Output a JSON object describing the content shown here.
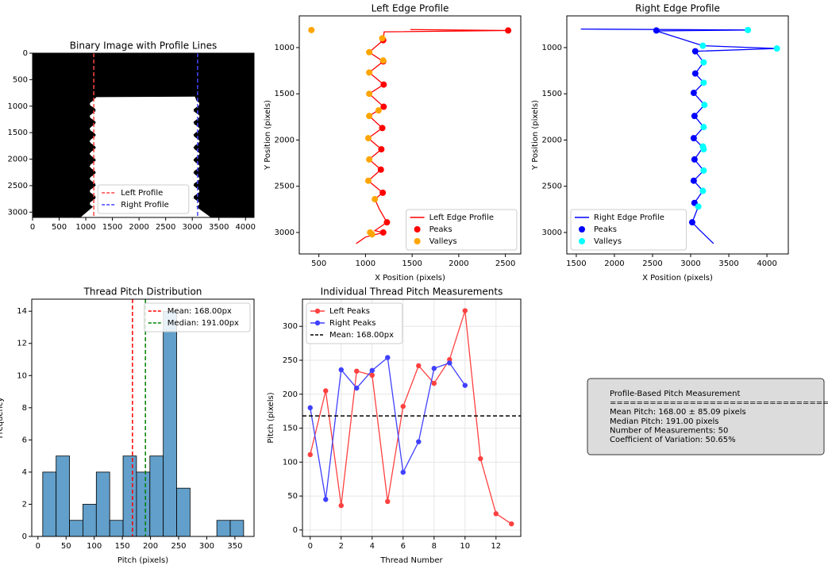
{
  "chart_data": [
    {
      "type": "image",
      "title": "Binary Image with Profile Lines",
      "xlim": [
        0,
        4160
      ],
      "ylim": [
        3100,
        0
      ],
      "xticks": [
        0,
        500,
        1000,
        1500,
        2000,
        2500,
        3000,
        3500,
        4000
      ],
      "yticks": [
        0,
        500,
        1000,
        1500,
        2000,
        2500,
        3000
      ],
      "legend": "lower center",
      "vlines": [
        {
          "label": "Left Profile",
          "x": 1150,
          "color": "#ff4444"
        },
        {
          "label": "Right Profile",
          "x": 3100,
          "color": "#4444ff"
        }
      ]
    },
    {
      "type": "line",
      "title": "Left Edge Profile",
      "xlabel": "X Position (pixels)",
      "ylabel": "Y Position (pixels)",
      "xlim": [
        290,
        2665
      ],
      "ylim": [
        3232,
        657
      ],
      "xticks": [
        500,
        1000,
        1500,
        2000,
        2500
      ],
      "yticks": [
        1000,
        1500,
        2000,
        2500,
        3000
      ],
      "legend": "lower right",
      "series": [
        {
          "name": "Left Edge Profile",
          "style": "line",
          "color": "#ff0000",
          "x": [
            1480,
            2530,
            1200,
            1190,
            1040,
            1190,
            1040,
            1195,
            1040,
            1195,
            1040,
            1180,
            1030,
            1170,
            1040,
            1165,
            1030,
            1185,
            1100,
            1150,
            1230,
            1100,
            1190,
            1000,
            900
          ],
          "values": [
            805,
            815,
            830,
            920,
            1050,
            1150,
            1270,
            1400,
            1500,
            1640,
            1740,
            1870,
            1980,
            2100,
            2210,
            2320,
            2440,
            2570,
            2640,
            2750,
            2890,
            2980,
            3000,
            3050,
            3120
          ]
        },
        {
          "name": "Peaks",
          "style": "points",
          "color": "#ff0000",
          "x": [
            2530,
            1190,
            1190,
            1195,
            1195,
            1180,
            1170,
            1165,
            1185,
            1230,
            1190
          ],
          "values": [
            815,
            920,
            1150,
            1400,
            1640,
            1870,
            2100,
            2320,
            2570,
            2890,
            3000
          ]
        },
        {
          "name": "Valleys",
          "style": "points",
          "color": "#ffa500",
          "x": [
            420,
            1180,
            1040,
            1190,
            1040,
            1040,
            1140,
            1040,
            1030,
            1040,
            1030,
            1100,
            1050,
            1070
          ],
          "values": [
            810,
            900,
            1050,
            1140,
            1270,
            1500,
            1680,
            1740,
            1980,
            2210,
            2440,
            2640,
            3000,
            3020
          ]
        }
      ]
    },
    {
      "type": "line",
      "title": "Right Edge Profile",
      "xlabel": "X Position (pixels)",
      "ylabel": "Y Position (pixels)",
      "xlim": [
        1376,
        4280
      ],
      "ylim": [
        3232,
        657
      ],
      "xticks": [
        1500,
        2000,
        2500,
        3000,
        3500,
        4000
      ],
      "yticks": [
        1000,
        1500,
        2000,
        2500,
        3000
      ],
      "legend": "lower left",
      "series": [
        {
          "name": "Right Edge Profile",
          "style": "line",
          "color": "#0000ff",
          "x": [
            1560,
            3750,
            2550,
            3160,
            4130,
            3060,
            3170,
            3060,
            3170,
            3040,
            3180,
            3050,
            3170,
            3040,
            3160,
            3050,
            3170,
            3040,
            3160,
            3050,
            3100,
            3020,
            3100,
            3300
          ],
          "values": [
            800,
            810,
            820,
            980,
            1010,
            1040,
            1160,
            1280,
            1380,
            1490,
            1620,
            1740,
            1860,
            1980,
            2080,
            2210,
            2330,
            2440,
            2550,
            2680,
            2720,
            2890,
            2960,
            3120
          ]
        },
        {
          "name": "Peaks",
          "style": "points",
          "color": "#0000ff",
          "x": [
            2550,
            3060,
            3060,
            3040,
            3050,
            3040,
            3050,
            3040,
            3050,
            3020
          ],
          "values": [
            815,
            1040,
            1280,
            1490,
            1740,
            1980,
            2210,
            2440,
            2680,
            2890
          ]
        },
        {
          "name": "Valleys",
          "style": "points",
          "color": "#00ffff",
          "x": [
            3750,
            3160,
            4130,
            3170,
            3170,
            3180,
            3170,
            3160,
            3170,
            3170,
            3160,
            3100
          ],
          "values": [
            810,
            980,
            1010,
            1160,
            1380,
            1620,
            1860,
            2070,
            2100,
            2330,
            2550,
            2720
          ]
        }
      ]
    },
    {
      "type": "histogram",
      "title": "Thread Pitch Distribution",
      "xlabel": "Pitch (pixels)",
      "ylabel": "Frequency",
      "xlim": [
        -11,
        384
      ],
      "ylim": [
        0,
        14.75
      ],
      "xticks": [
        0,
        50,
        100,
        150,
        200,
        250,
        300,
        350
      ],
      "yticks": [
        0,
        2,
        4,
        6,
        8,
        10,
        12,
        14
      ],
      "legend": "upper right",
      "color": "#629fca",
      "bins": [
        8.5,
        32.3,
        56.1,
        79.9,
        103.7,
        127.5,
        151.3,
        175.1,
        198.9,
        222.7,
        246.5,
        270.3,
        294.1,
        317.9,
        341.7,
        365.5
      ],
      "counts": [
        4,
        5,
        1,
        2,
        4,
        1,
        5,
        4,
        5,
        14,
        3,
        0,
        0,
        1,
        1
      ],
      "vlines": [
        {
          "label": "Mean: 168.00px",
          "x": 168,
          "color": "#ff0000"
        },
        {
          "label": "Median: 191.00px",
          "x": 191,
          "color": "#008000"
        }
      ]
    },
    {
      "type": "line",
      "title": "Individual Thread Pitch Measurements",
      "xlabel": "Thread Number",
      "ylabel": "Pitch (pixels)",
      "xlim": [
        -0.5,
        13.6
      ],
      "ylim": [
        -9.5,
        340
      ],
      "xticks": [
        0,
        2,
        4,
        6,
        8,
        10,
        12
      ],
      "yticks": [
        0,
        50,
        100,
        150,
        200,
        250,
        300
      ],
      "grid": true,
      "legend": "upper left",
      "series": [
        {
          "name": "Left Peaks",
          "style": "markers-line",
          "color": "#ff4040",
          "x": [
            0,
            1,
            2,
            3,
            4,
            5,
            6,
            7,
            8,
            9,
            10,
            11,
            12,
            13
          ],
          "values": [
            111,
            205,
            36,
            234,
            228,
            42,
            182,
            242,
            216,
            251,
            323,
            105,
            24,
            9
          ]
        },
        {
          "name": "Right Peaks",
          "style": "markers-line",
          "color": "#4040ff",
          "x": [
            0,
            1,
            2,
            3,
            4,
            5,
            6,
            7,
            8,
            9,
            10
          ],
          "values": [
            180,
            45,
            236,
            209,
            235,
            254,
            85,
            130,
            238,
            246,
            213
          ]
        }
      ],
      "hlines": [
        {
          "label": "Mean: 168.00px",
          "y": 168,
          "color": "#000000"
        }
      ]
    }
  ],
  "textbox": {
    "lines": [
      "Profile-Based Pitch Measurement",
      "====================================",
      "Mean Pitch: 168.00 ± 85.09 pixels",
      "Median Pitch: 191.00 pixels",
      "Number of Measurements: 50",
      "Coefficient of Variation: 50.65%"
    ]
  }
}
